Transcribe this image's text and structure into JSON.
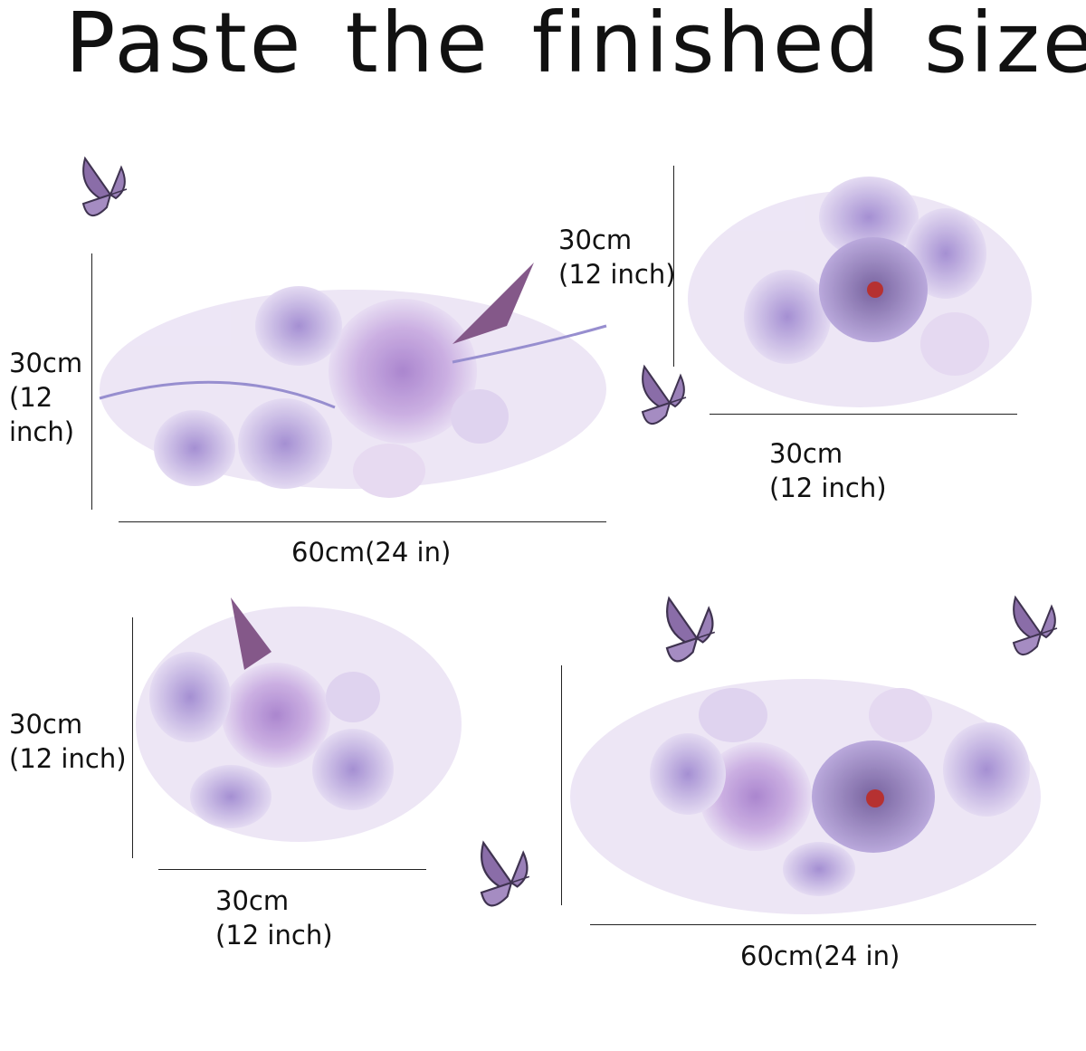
{
  "title": "Paste the finished size",
  "colors": {
    "petal_light": "#d9c6ea",
    "petal_mid": "#b79ad6",
    "petal_dark": "#8c6bb8",
    "leaf": "#a89ad8",
    "butterfly": "#5a4a6e",
    "flower_center": "#b02020"
  },
  "decals": [
    {
      "height_label": [
        "30cm",
        "(12",
        "inch)"
      ],
      "width_label": [
        "60cm(24 in)"
      ]
    },
    {
      "height_label": [
        "30cm",
        "(12 inch)"
      ],
      "width_label": [
        "30cm",
        "(12 inch)"
      ]
    },
    {
      "height_label": [
        "30cm",
        "(12 inch)"
      ],
      "width_label": [
        "30cm",
        "(12 inch)"
      ]
    },
    {
      "width_label": [
        "60cm(24 in)"
      ]
    }
  ],
  "icons": [
    "butterfly-icon",
    "flower-cluster"
  ]
}
